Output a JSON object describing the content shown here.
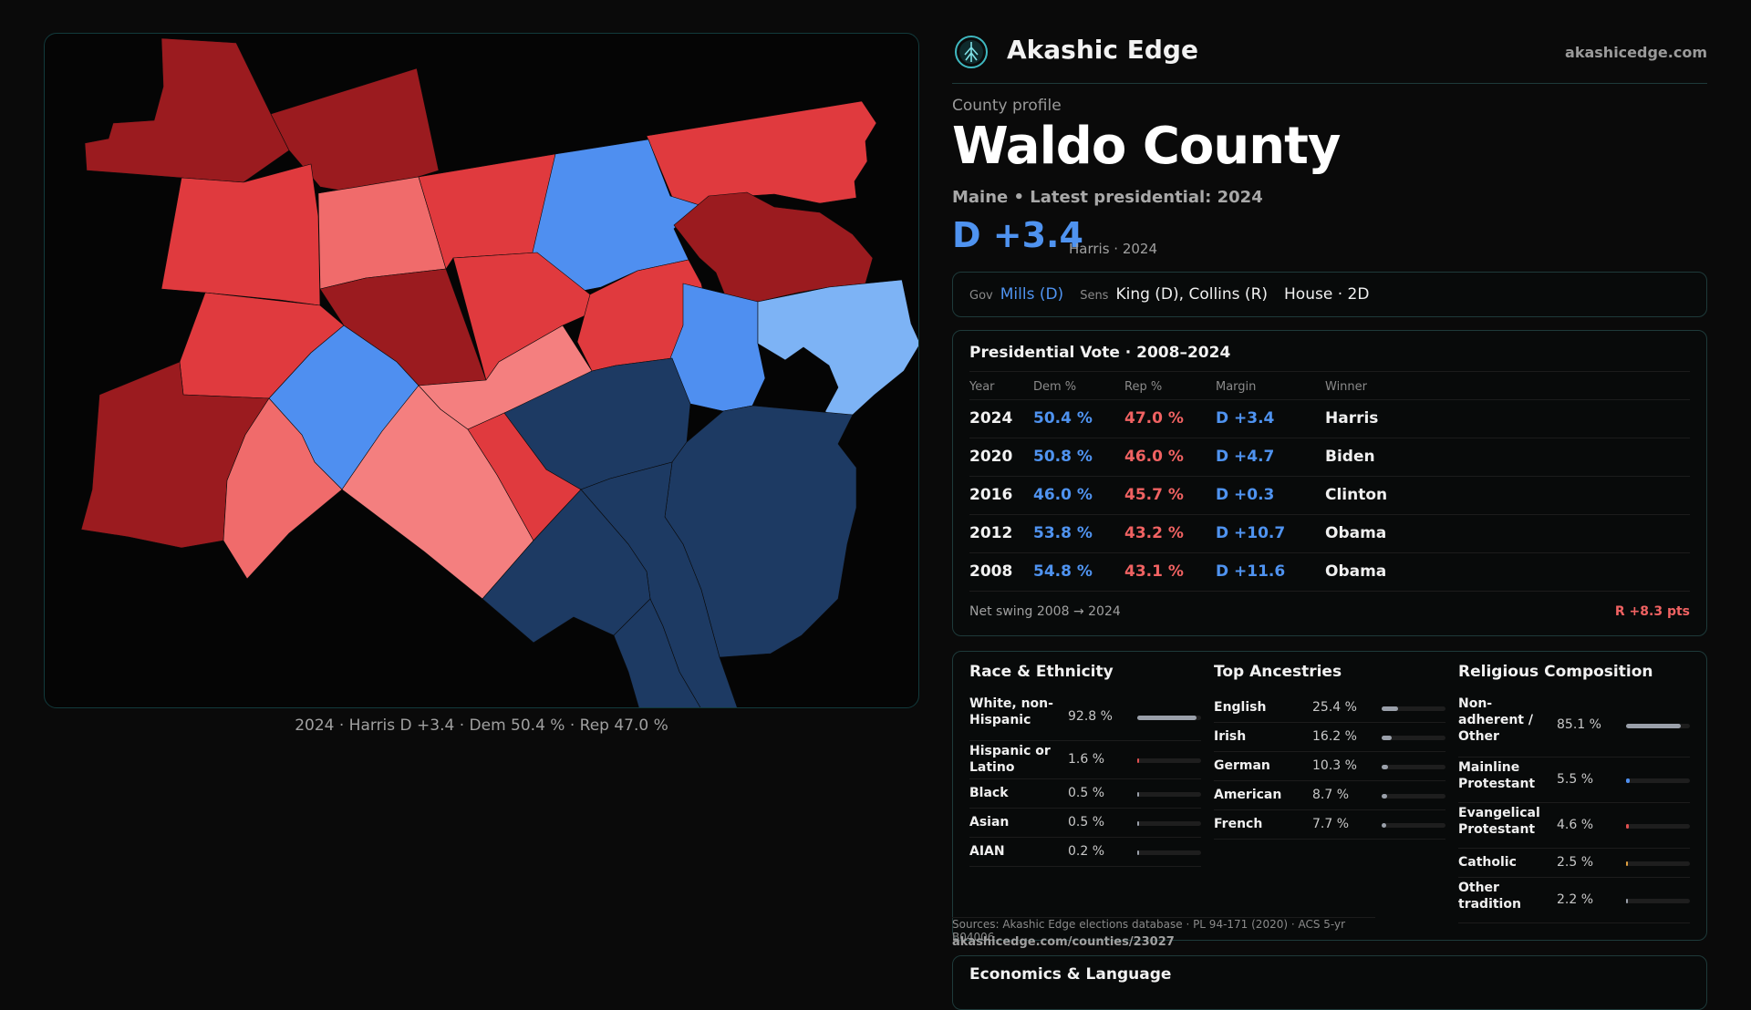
{
  "map": {
    "caption": "2024 · Harris D +3.4 · Dem 50.4 % · Rep 47.0 %",
    "colors": {
      "strong_r": "#9b1b1f",
      "mid_r": "#e03a3e",
      "light_r": "#f06b6b",
      "lighter_r": "#f47f7f",
      "mid_d": "#4f8ff0",
      "light_d": "#7db3f5",
      "dark_d": "#1d3a63"
    }
  },
  "header": {
    "brand": "Akashic Edge",
    "site": "akashicedge.com",
    "logo_icon": "tree-of-life-icon"
  },
  "profile": {
    "eyebrow": "County profile",
    "title": "Waldo County",
    "subtitle": "Maine • Latest presidential: 2024",
    "margin": "D +3.4",
    "margin_note": "Harris · 2024"
  },
  "officials": {
    "gov_key": "Gov",
    "gov_val": "Mills (D)",
    "sens_key": "Sens",
    "sens_val": "King (D), Collins (R)",
    "house": "House · 2D"
  },
  "presidential": {
    "title": "Presidential Vote · 2008–2024",
    "headers": {
      "year": "Year",
      "dem": "Dem %",
      "rep": "Rep %",
      "margin": "Margin",
      "winner": "Winner"
    },
    "rows": [
      {
        "year": "2024",
        "dem": "50.4 %",
        "rep": "47.0 %",
        "margin": "D +3.4",
        "winner": "Harris"
      },
      {
        "year": "2020",
        "dem": "50.8 %",
        "rep": "46.0 %",
        "margin": "D +4.7",
        "winner": "Biden"
      },
      {
        "year": "2016",
        "dem": "46.0 %",
        "rep": "45.7 %",
        "margin": "D +0.3",
        "winner": "Clinton"
      },
      {
        "year": "2012",
        "dem": "53.8 %",
        "rep": "43.2 %",
        "margin": "D +10.7",
        "winner": "Obama"
      },
      {
        "year": "2008",
        "dem": "54.8 %",
        "rep": "43.1 %",
        "margin": "D +11.6",
        "winner": "Obama"
      }
    ],
    "swing_label": "Net swing 2008 → 2024",
    "swing_value": "R +8.3 pts"
  },
  "race": {
    "title": "Race & Ethnicity",
    "rows": [
      {
        "label": "White, non-Hispanic",
        "value": "92.8 %",
        "frac": 0.928,
        "color": "#9aa0aa"
      },
      {
        "label": "Hispanic or Latino",
        "value": "1.6 %",
        "frac": 0.016,
        "color": "#e05050"
      },
      {
        "label": "Black",
        "value": "0.5 %",
        "frac": 0.005,
        "color": "#9aa0aa"
      },
      {
        "label": "Asian",
        "value": "0.5 %",
        "frac": 0.005,
        "color": "#9aa0aa"
      },
      {
        "label": "AIAN",
        "value": "0.2 %",
        "frac": 0.002,
        "color": "#9aa0aa"
      }
    ]
  },
  "ancestry": {
    "title": "Top Ancestries",
    "rows": [
      {
        "label": "English",
        "value": "25.4 %",
        "frac": 0.254,
        "color": "#9aa0aa"
      },
      {
        "label": "Irish",
        "value": "16.2 %",
        "frac": 0.162,
        "color": "#9aa0aa"
      },
      {
        "label": "German",
        "value": "10.3 %",
        "frac": 0.103,
        "color": "#9aa0aa"
      },
      {
        "label": "American",
        "value": "8.7 %",
        "frac": 0.087,
        "color": "#9aa0aa"
      },
      {
        "label": "French",
        "value": "7.7 %",
        "frac": 0.077,
        "color": "#9aa0aa"
      }
    ]
  },
  "religion": {
    "title": "Religious Composition",
    "rows": [
      {
        "label": "Non-adherent / Other",
        "value": "85.1 %",
        "frac": 0.851,
        "color": "#9aa0aa"
      },
      {
        "label": "Mainline Protestant",
        "value": "5.5 %",
        "frac": 0.055,
        "color": "#4f8ff0"
      },
      {
        "label": "Evangelical Protestant",
        "value": "4.6 %",
        "frac": 0.046,
        "color": "#e05050"
      },
      {
        "label": "Catholic",
        "value": "2.5 %",
        "frac": 0.025,
        "color": "#e0a040"
      },
      {
        "label": "Other tradition",
        "value": "2.2 %",
        "frac": 0.022,
        "color": "#9aa0aa"
      }
    ]
  },
  "footer": {
    "sources": "Sources: Akashic Edge elections database · PL 94-171 (2020) · ACS 5-yr B04006",
    "url": "akashicedge.com/counties/23027",
    "econ_title": "Economics & Language"
  }
}
